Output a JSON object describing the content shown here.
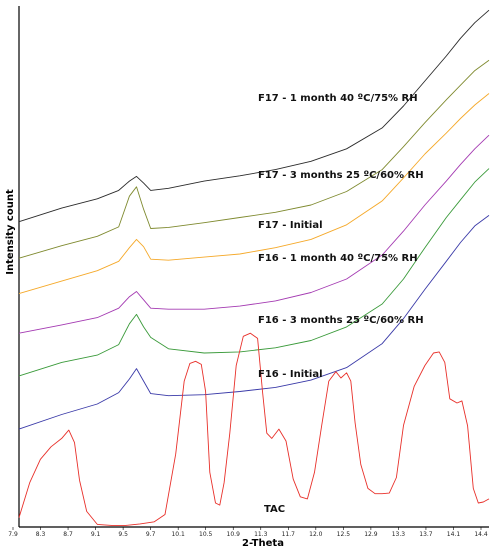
{
  "chart_data": {
    "type": "line",
    "xlabel": "2-Theta",
    "ylabel": "Intensity count",
    "xlim": [
      7.9,
      14.5
    ],
    "ylim": [
      0,
      100
    ],
    "x_ticks": [
      "7.9",
      "8.3",
      "8.7",
      "9.1",
      "9.5",
      "9.7",
      "10.1",
      "10.5",
      "10.9",
      "11.3",
      "11.7",
      "12.0",
      "12.5",
      "12.9",
      "13.3",
      "13.7",
      "14.1",
      "14.4"
    ],
    "grid": false,
    "series": [
      {
        "name": "F17 - 1 month 40 ºC/75% RH",
        "color": "#2b2b2b",
        "x": [
          7.9,
          8.5,
          9.0,
          9.3,
          9.45,
          9.55,
          9.65,
          9.75,
          10.0,
          10.5,
          11.0,
          11.5,
          12.0,
          12.5,
          13.0,
          13.3,
          13.6,
          13.9,
          14.1,
          14.3,
          14.5
        ],
        "y": [
          58.6,
          61.2,
          63.0,
          64.6,
          66.4,
          67.3,
          66.0,
          64.6,
          65.0,
          66.4,
          67.4,
          68.6,
          70.2,
          72.6,
          76.6,
          80.8,
          85.6,
          90.4,
          93.8,
          96.8,
          99.2
        ]
      },
      {
        "name": "F17 - 3 months 25 ºC/60% RH",
        "color": "#7f8a2f",
        "x": [
          7.9,
          8.5,
          9.0,
          9.3,
          9.45,
          9.55,
          9.65,
          9.75,
          10.0,
          10.5,
          11.0,
          11.5,
          12.0,
          12.5,
          13.0,
          13.3,
          13.6,
          13.9,
          14.1,
          14.3,
          14.5
        ],
        "y": [
          51.6,
          54.0,
          55.8,
          57.6,
          63.5,
          65.3,
          61.0,
          57.3,
          57.5,
          58.4,
          59.4,
          60.4,
          61.8,
          64.4,
          68.6,
          73.0,
          77.6,
          82.0,
          84.8,
          87.6,
          89.6
        ]
      },
      {
        "name": "F17 - Initial",
        "color": "#f5a92a",
        "x": [
          7.9,
          8.5,
          9.0,
          9.3,
          9.45,
          9.55,
          9.65,
          9.75,
          10.0,
          10.5,
          11.0,
          11.5,
          12.0,
          12.5,
          13.0,
          13.3,
          13.6,
          13.9,
          14.1,
          14.3,
          14.5
        ],
        "y": [
          44.8,
          47.2,
          49.2,
          51.0,
          53.6,
          55.2,
          53.8,
          51.4,
          51.2,
          51.8,
          52.4,
          53.6,
          55.2,
          58.0,
          62.6,
          67.0,
          71.6,
          75.6,
          78.4,
          81.0,
          83.2
        ]
      },
      {
        "name": "F16 - 1 month 40 ºC/75% RH",
        "color": "#a43ab2",
        "x": [
          7.9,
          8.5,
          9.0,
          9.3,
          9.45,
          9.55,
          9.65,
          9.75,
          10.0,
          10.5,
          11.0,
          11.5,
          12.0,
          12.5,
          13.0,
          13.3,
          13.6,
          13.9,
          14.1,
          14.3,
          14.5
        ],
        "y": [
          37.2,
          38.8,
          40.2,
          42.0,
          44.2,
          45.2,
          43.6,
          42.0,
          41.8,
          41.8,
          42.4,
          43.4,
          45.0,
          47.6,
          52.2,
          56.8,
          61.8,
          66.4,
          69.6,
          72.6,
          75.2
        ]
      },
      {
        "name": "F16 - 3 months 25 ºC/60% RH",
        "color": "#3a9a3a",
        "x": [
          7.9,
          8.5,
          9.0,
          9.3,
          9.45,
          9.55,
          9.65,
          9.75,
          10.0,
          10.5,
          11.0,
          11.5,
          12.0,
          12.5,
          13.0,
          13.3,
          13.6,
          13.9,
          14.1,
          14.3,
          14.5
        ],
        "y": [
          29.0,
          31.6,
          33.0,
          35.0,
          39.0,
          40.8,
          38.4,
          36.4,
          34.2,
          33.4,
          33.6,
          34.4,
          35.8,
          38.4,
          42.8,
          47.6,
          53.6,
          59.4,
          62.8,
          66.2,
          68.8
        ]
      },
      {
        "name": "F16 - Initial",
        "color": "#3a3aa8",
        "x": [
          7.9,
          8.5,
          9.0,
          9.3,
          9.45,
          9.55,
          9.65,
          9.75,
          10.0,
          10.5,
          11.0,
          11.5,
          12.0,
          12.5,
          13.0,
          13.3,
          13.6,
          13.9,
          14.1,
          14.3,
          14.5
        ],
        "y": [
          18.8,
          21.6,
          23.6,
          25.8,
          28.4,
          30.4,
          28.0,
          25.6,
          25.2,
          25.4,
          26.0,
          26.8,
          28.2,
          30.6,
          35.2,
          40.0,
          45.6,
          51.0,
          54.6,
          57.8,
          59.8
        ]
      },
      {
        "name": "TAC",
        "color": "#e8302a",
        "x": [
          7.9,
          8.05,
          8.2,
          8.35,
          8.5,
          8.6,
          8.68,
          8.75,
          8.85,
          9.0,
          9.2,
          9.4,
          9.6,
          9.8,
          9.95,
          10.1,
          10.22,
          10.3,
          10.38,
          10.46,
          10.52,
          10.58,
          10.66,
          10.72,
          10.78,
          10.86,
          10.95,
          11.05,
          11.15,
          11.25,
          11.32,
          11.38,
          11.45,
          11.55,
          11.65,
          11.75,
          11.85,
          11.95,
          12.05,
          12.15,
          12.25,
          12.35,
          12.42,
          12.5,
          12.56,
          12.62,
          12.7,
          12.8,
          12.9,
          13.0,
          13.1,
          13.2,
          13.3,
          13.45,
          13.6,
          13.72,
          13.8,
          13.88,
          13.95,
          14.05,
          14.12,
          14.2,
          14.28,
          14.35,
          14.42,
          14.5
        ],
        "y": [
          1.8,
          8.5,
          13.0,
          15.4,
          17.0,
          18.6,
          16.2,
          9.0,
          3.0,
          0.5,
          0.3,
          0.3,
          0.6,
          1.0,
          2.4,
          14.0,
          28.0,
          31.4,
          31.8,
          31.2,
          26.0,
          10.5,
          4.6,
          4.2,
          8.5,
          18.0,
          31.0,
          36.6,
          37.2,
          36.2,
          26.0,
          18.0,
          17.0,
          18.8,
          16.5,
          9.2,
          5.8,
          5.4,
          10.5,
          19.5,
          28.0,
          29.8,
          28.6,
          29.6,
          28.0,
          20.0,
          12.0,
          7.4,
          6.4,
          6.4,
          6.5,
          9.5,
          19.5,
          27.0,
          31.0,
          33.4,
          33.6,
          31.6,
          24.6,
          23.8,
          24.2,
          19.4,
          7.4,
          4.6,
          4.8,
          5.4
        ]
      }
    ]
  }
}
